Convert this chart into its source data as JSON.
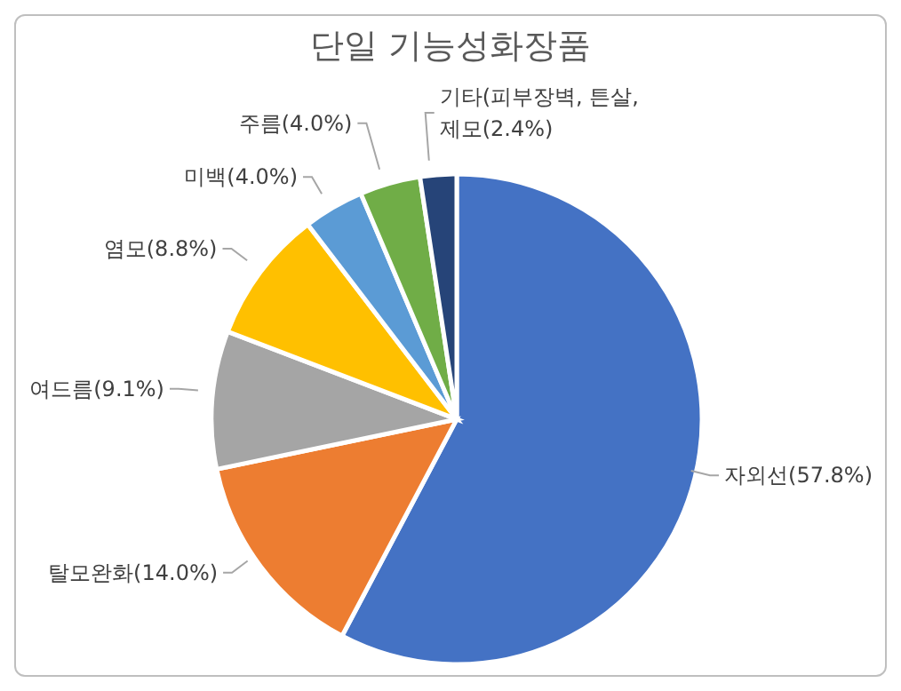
{
  "chart_data": {
    "type": "pie",
    "title": "단일 기능성화장품",
    "categories": [
      "자외선",
      "탈모완화",
      "여드름",
      "염모",
      "미백",
      "주름",
      "기타(피부장벽, 튼살, 제모"
    ],
    "values": [
      57.8,
      14.0,
      9.1,
      8.8,
      4.0,
      4.0,
      2.4
    ],
    "value_labels": [
      "(57.8%)",
      "(14.0%)",
      "(9.1%)",
      "(8.8%)",
      "(4.0%)",
      "(4.0%)",
      "(2.4%)"
    ],
    "colors": [
      "#4472c4",
      "#ed7d31",
      "#a5a5a5",
      "#ffc000",
      "#5b9bd5",
      "#70ad47",
      "#264478"
    ],
    "legend": false
  }
}
